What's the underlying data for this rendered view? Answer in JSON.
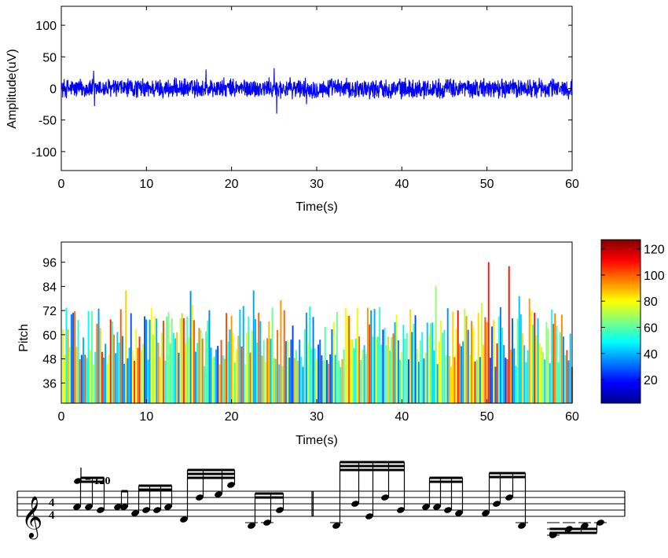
{
  "chart_data": [
    {
      "type": "line",
      "title": "",
      "xlabel": "Time(s)",
      "ylabel": "Amplitude(uV)",
      "xlim": [
        0,
        60
      ],
      "ylim": [
        -130,
        130
      ],
      "xticks": [
        "0",
        "10",
        "20",
        "30",
        "40",
        "50",
        "60"
      ],
      "yticks": [
        "-100",
        "-50",
        "0",
        "50",
        "100"
      ],
      "series": [
        {
          "color": "#0000ff",
          "description_values": {
            "x_start": 0,
            "x_end": 60,
            "typical_range": [
              -15,
              15
            ],
            "notable_peaks": [
              [
                3.8,
                28
              ],
              [
                3.9,
                -28
              ],
              [
                17.0,
                30
              ],
              [
                25.0,
                32
              ],
              [
                25.3,
                -40
              ],
              [
                28.8,
                -25
              ]
            ]
          }
        }
      ],
      "grid": false
    },
    {
      "type": "bar",
      "title": "",
      "xlabel": "Time(s)",
      "ylabel": "Pitch",
      "xlim": [
        0,
        60
      ],
      "ylim": [
        26,
        106
      ],
      "xticks": [
        "0",
        "10",
        "20",
        "30",
        "40",
        "50",
        "60"
      ],
      "yticks": [
        "36",
        "48",
        "60",
        "72",
        "84",
        "96"
      ],
      "colorbar": {
        "range": [
          2,
          127
        ],
        "ticks": [
          "20",
          "40",
          "60",
          "80",
          "100",
          "120"
        ],
        "colormap": "jet"
      },
      "typical_pitch_range": [
        44,
        84
      ],
      "notable_bars": [
        [
          25.0,
          48
        ],
        [
          50.2,
          96
        ],
        [
          52.5,
          94
        ],
        [
          7.5,
          82
        ],
        [
          22.5,
          82
        ],
        [
          44.0,
          84
        ]
      ],
      "grid": false
    }
  ],
  "score": {
    "tempo_text": "= 120",
    "time_signature_top": "4",
    "time_signature_bottom": "4",
    "clef": "treble-clef"
  }
}
